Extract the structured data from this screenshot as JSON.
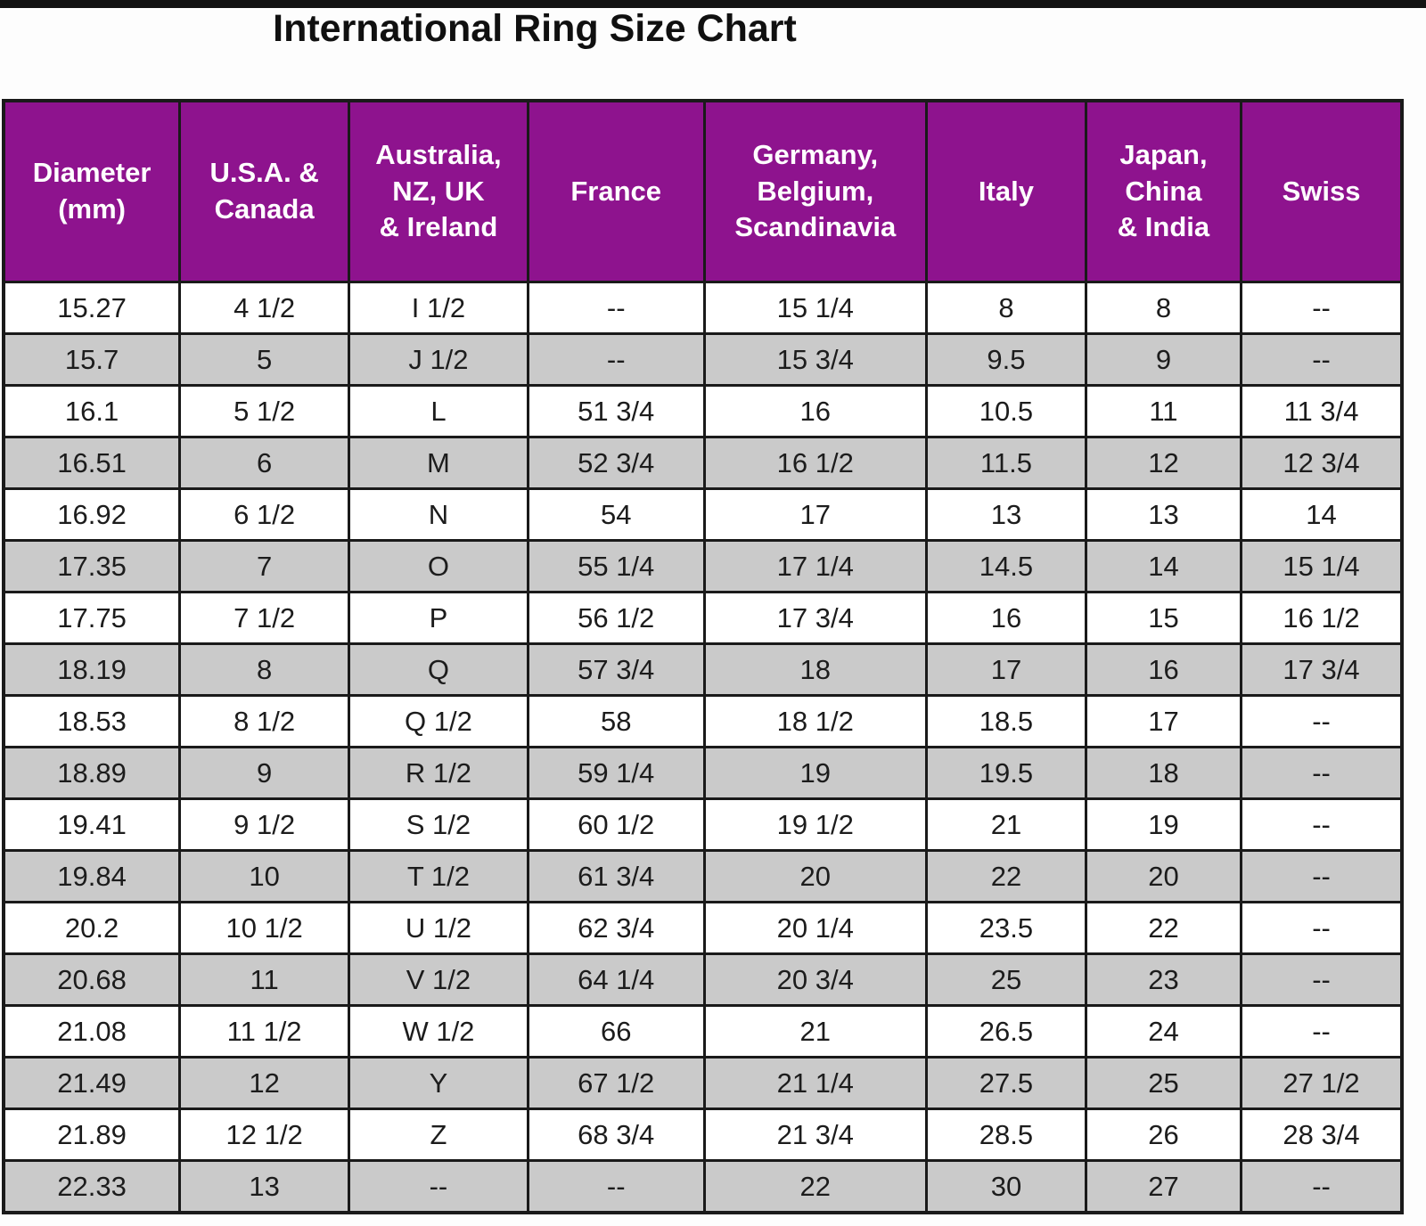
{
  "title": "International Ring Size Chart",
  "chart_data": {
    "type": "table",
    "title": "International Ring Size Chart",
    "columns": [
      "Diameter (mm)",
      "U.S.A. & Canada",
      "Australia, NZ, UK & Ireland",
      "France",
      "Germany, Belgium, Scandinavia",
      "Italy",
      "Japan, China & India",
      "Swiss"
    ],
    "column_headers_display": [
      "Diameter\n(mm)",
      "U.S.A. &\nCanada",
      "Australia,\nNZ, UK\n& Ireland",
      "France",
      "Germany,\nBelgium,\nScandinavia",
      "Italy",
      "Japan,\nChina\n& India",
      "Swiss"
    ],
    "missing_value_marker": "--",
    "rows": [
      [
        "15.27",
        "4 1/2",
        "I 1/2",
        "--",
        "15 1/4",
        "8",
        "8",
        "--"
      ],
      [
        "15.7",
        "5",
        "J 1/2",
        "--",
        "15 3/4",
        "9.5",
        "9",
        "--"
      ],
      [
        "16.1",
        "5 1/2",
        "L",
        "51 3/4",
        "16",
        "10.5",
        "11",
        "11 3/4"
      ],
      [
        "16.51",
        "6",
        "M",
        "52 3/4",
        "16 1/2",
        "11.5",
        "12",
        "12 3/4"
      ],
      [
        "16.92",
        "6 1/2",
        "N",
        "54",
        "17",
        "13",
        "13",
        "14"
      ],
      [
        "17.35",
        "7",
        "O",
        "55 1/4",
        "17 1/4",
        "14.5",
        "14",
        "15 1/4"
      ],
      [
        "17.75",
        "7 1/2",
        "P",
        "56 1/2",
        "17 3/4",
        "16",
        "15",
        "16 1/2"
      ],
      [
        "18.19",
        "8",
        "Q",
        "57 3/4",
        "18",
        "17",
        "16",
        "17 3/4"
      ],
      [
        "18.53",
        "8 1/2",
        "Q 1/2",
        "58",
        "18 1/2",
        "18.5",
        "17",
        "--"
      ],
      [
        "18.89",
        "9",
        "R 1/2",
        "59 1/4",
        "19",
        "19.5",
        "18",
        "--"
      ],
      [
        "19.41",
        "9 1/2",
        "S 1/2",
        "60 1/2",
        "19 1/2",
        "21",
        "19",
        "--"
      ],
      [
        "19.84",
        "10",
        "T 1/2",
        "61 3/4",
        "20",
        "22",
        "20",
        "--"
      ],
      [
        "20.2",
        "10 1/2",
        "U 1/2",
        "62 3/4",
        "20 1/4",
        "23.5",
        "22",
        "--"
      ],
      [
        "20.68",
        "11",
        "V 1/2",
        "64 1/4",
        "20 3/4",
        "25",
        "23",
        "--"
      ],
      [
        "21.08",
        "11 1/2",
        "W 1/2",
        "66",
        "21",
        "26.5",
        "24",
        "--"
      ],
      [
        "21.49",
        "12",
        "Y",
        "67 1/2",
        "21 1/4",
        "27.5",
        "25",
        "27 1/2"
      ],
      [
        "21.89",
        "12 1/2",
        "Z",
        "68 3/4",
        "21 3/4",
        "28.5",
        "26",
        "28 3/4"
      ],
      [
        "22.33",
        "13",
        "--",
        "--",
        "22",
        "30",
        "27",
        "--"
      ]
    ],
    "styles": {
      "header_bg": "#8e138e",
      "header_text": "#ffffff",
      "row_bg": "#ffffff",
      "row_alt_bg": "#cacaca",
      "border_color": "#1a1a1a"
    },
    "layout_hints": {
      "first_row_background": "white",
      "alternating": true,
      "grid": true
    }
  }
}
